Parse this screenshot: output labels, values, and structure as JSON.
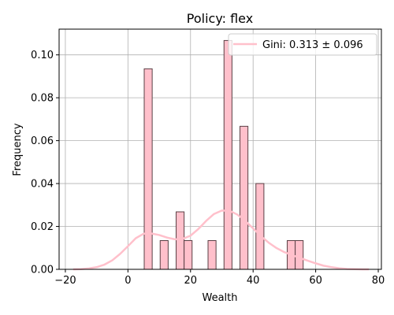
{
  "chart_data": {
    "type": "bar",
    "title": "Policy: flex",
    "xlabel": "Wealth",
    "ylabel": "Frequency",
    "xlim": [
      -22,
      81
    ],
    "ylim": [
      0,
      0.112
    ],
    "xticks": [
      -20,
      0,
      20,
      40,
      60,
      80
    ],
    "yticks": [
      0.0,
      0.02,
      0.04,
      0.06,
      0.08,
      0.1
    ],
    "xtick_labels": [
      "−20",
      "0",
      "20",
      "40",
      "60",
      "80"
    ],
    "ytick_labels": [
      "0.00",
      "0.02",
      "0.04",
      "0.06",
      "0.08",
      "0.10"
    ],
    "grid": true,
    "legend_position": "top-right",
    "bar_color": "#ffc0cb",
    "bar_edge_color": "#5a4045",
    "line_color": "#ffc0cb",
    "histogram": {
      "bin_width": 2.55,
      "bins": [
        {
          "x0": 5.2,
          "value": 0.0935
        },
        {
          "x0": 10.3,
          "value": 0.0134
        },
        {
          "x0": 15.4,
          "value": 0.0268
        },
        {
          "x0": 17.95,
          "value": 0.0134
        },
        {
          "x0": 25.6,
          "value": 0.0134
        },
        {
          "x0": 30.7,
          "value": 0.1067
        },
        {
          "x0": 35.8,
          "value": 0.0667
        },
        {
          "x0": 40.9,
          "value": 0.04
        },
        {
          "x0": 50.9,
          "value": 0.0134
        },
        {
          "x0": 53.45,
          "value": 0.0134
        }
      ]
    },
    "series": [
      {
        "name": "Gini: 0.313 ± 0.096",
        "type": "line",
        "x": [
          -17.5,
          -15,
          -12.5,
          -10,
          -7.5,
          -5,
          -2.5,
          0,
          2.5,
          5,
          7.5,
          10,
          12.5,
          15,
          17.5,
          20,
          22.5,
          25,
          27.5,
          30,
          32.5,
          35,
          37.5,
          40,
          42.5,
          45,
          47.5,
          50,
          52.5,
          55,
          57.5,
          60,
          62.5,
          65,
          67.5,
          70,
          72.5,
          75,
          77.0
        ],
        "y": [
          0.0,
          0.0001,
          0.0004,
          0.001,
          0.0022,
          0.0042,
          0.0072,
          0.0108,
          0.0145,
          0.0166,
          0.0167,
          0.016,
          0.0148,
          0.014,
          0.0142,
          0.0157,
          0.0188,
          0.0226,
          0.0258,
          0.0274,
          0.0273,
          0.0255,
          0.0226,
          0.0191,
          0.0155,
          0.0124,
          0.0099,
          0.008,
          0.0066,
          0.0053,
          0.004,
          0.0028,
          0.0017,
          0.001,
          0.0005,
          0.0002,
          0.0001,
          0.0,
          0.0
        ]
      }
    ]
  }
}
